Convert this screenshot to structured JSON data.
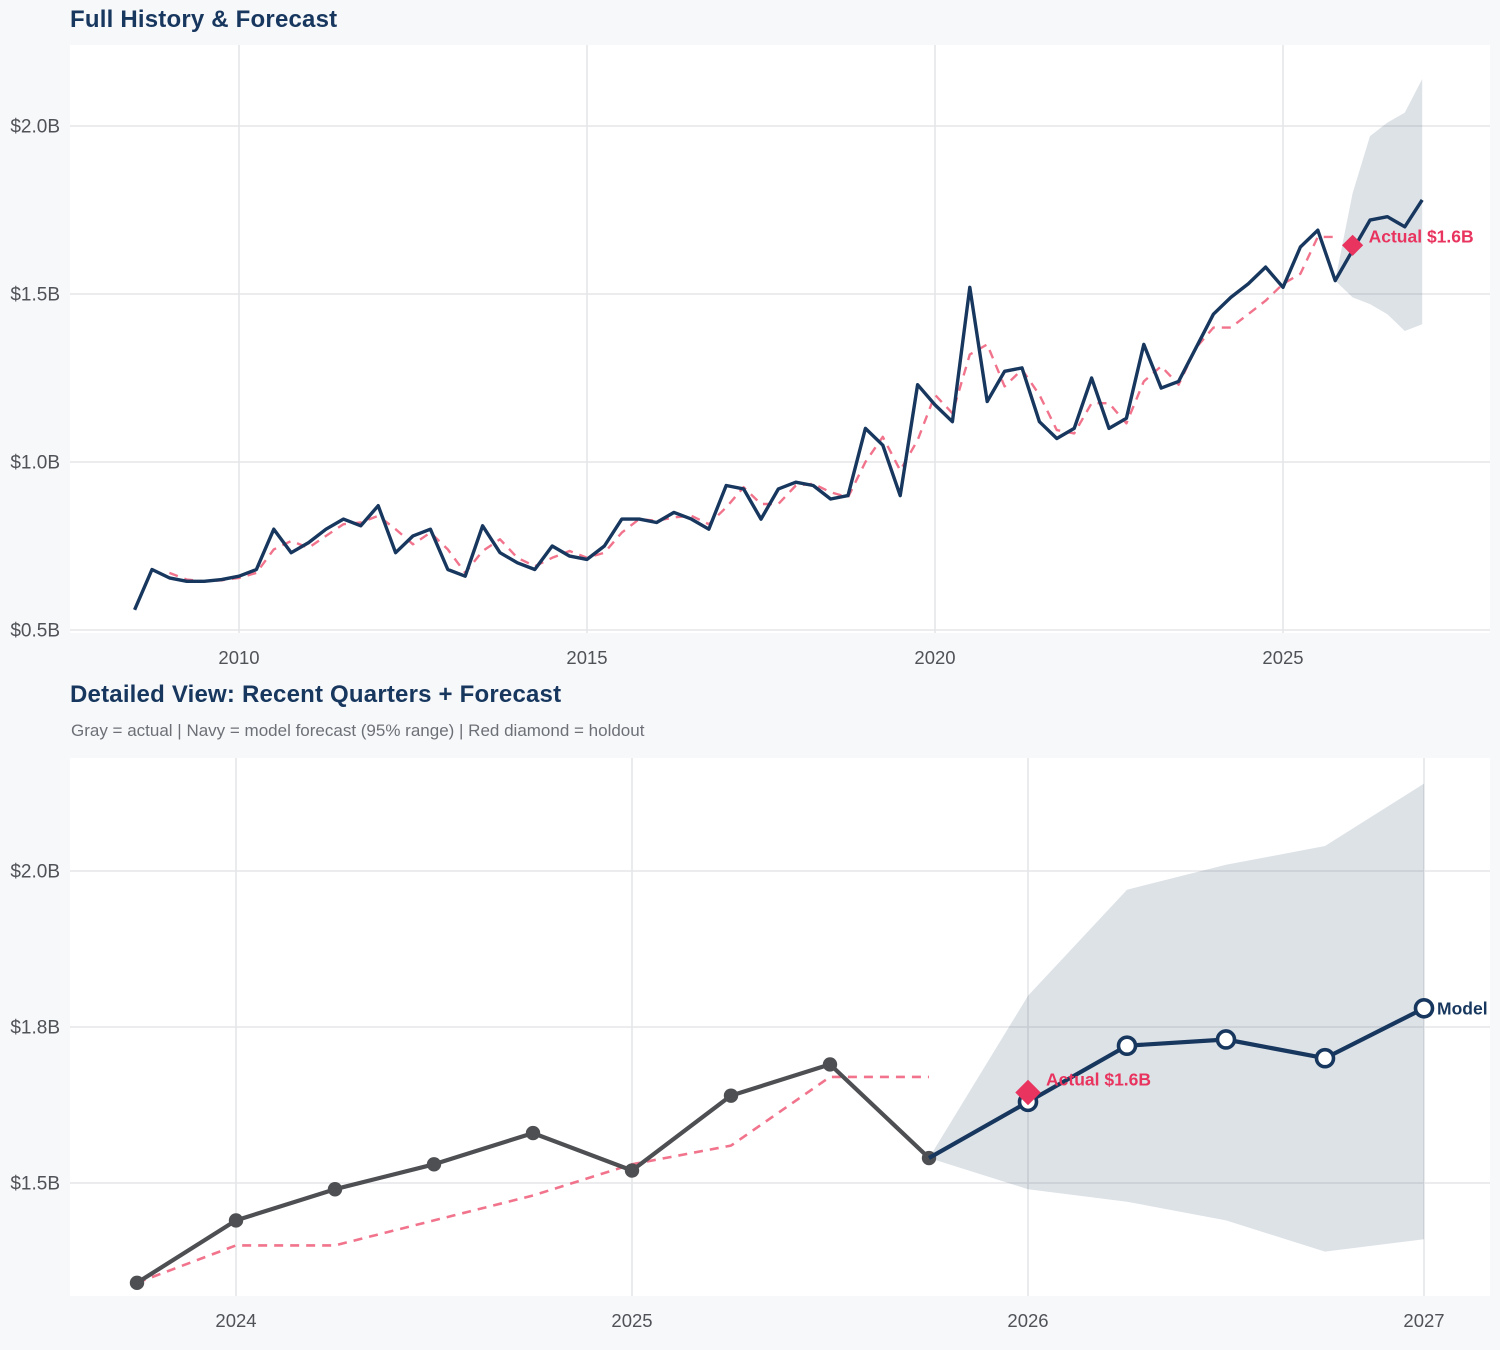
{
  "colors": {
    "navy": "#17375e",
    "pink": "#ef6480",
    "gray": "#4d4f52",
    "crimson": "#e8345e",
    "band": "#1b3a5f",
    "grid": "#e5e6e8",
    "plot_bg": "#ffffff",
    "page_bg": "#f7f8fa",
    "tick_text": "#4f5257",
    "title_text": "#17375e",
    "subtitle_text": "#6d7177"
  },
  "chart_data": [
    {
      "type": "line",
      "title": "Full History & Forecast",
      "x_unit": "year_quarterly",
      "xticks": [
        {
          "value": 2010,
          "label": "2010"
        },
        {
          "value": 2015,
          "label": "2015"
        },
        {
          "value": 2020,
          "label": "2020"
        },
        {
          "value": 2025,
          "label": "2025"
        }
      ],
      "yticks": [
        {
          "value": 0.5,
          "label": "$0.5B"
        },
        {
          "value": 1.0,
          "label": "$1.0B"
        },
        {
          "value": 1.5,
          "label": "$1.5B"
        },
        {
          "value": 2.0,
          "label": "$2.0B"
        }
      ],
      "xlim": [
        2007.55,
        2027.95
      ],
      "ylim": [
        0.49,
        2.25
      ],
      "grid": true,
      "series": {
        "actual": {
          "name": "actual",
          "x_start": 2008.5,
          "x_step": 0.25,
          "values": [
            0.56,
            0.68,
            0.655,
            0.645,
            0.645,
            0.65,
            0.66,
            0.68,
            0.8,
            0.73,
            0.76,
            0.8,
            0.83,
            0.81,
            0.87,
            0.73,
            0.78,
            0.8,
            0.68,
            0.66,
            0.81,
            0.73,
            0.7,
            0.68,
            0.75,
            0.72,
            0.71,
            0.75,
            0.83,
            0.83,
            0.82,
            0.85,
            0.83,
            0.8,
            0.93,
            0.92,
            0.83,
            0.92,
            0.94,
            0.93,
            0.89,
            0.9,
            1.1,
            1.05,
            0.9,
            1.23,
            1.17,
            1.12,
            1.52,
            1.18,
            1.27,
            1.28,
            1.12,
            1.07,
            1.1,
            1.25,
            1.1,
            1.13,
            1.35,
            1.22,
            1.24,
            1.34,
            1.44,
            1.49,
            1.53,
            1.58,
            1.52,
            1.64,
            1.69,
            1.54
          ]
        },
        "fitted": {
          "name": "model fit (in-sample)",
          "x_start": 2009.0,
          "x_step": 0.25,
          "values": [
            0.67,
            0.65,
            0.645,
            0.648,
            0.655,
            0.67,
            0.74,
            0.765,
            0.745,
            0.78,
            0.815,
            0.82,
            0.84,
            0.8,
            0.755,
            0.79,
            0.74,
            0.67,
            0.735,
            0.77,
            0.715,
            0.69,
            0.715,
            0.735,
            0.715,
            0.73,
            0.79,
            0.83,
            0.825,
            0.835,
            0.84,
            0.815,
            0.865,
            0.925,
            0.875,
            0.875,
            0.93,
            0.935,
            0.91,
            0.895,
            1.0,
            1.075,
            0.975,
            1.065,
            1.2,
            1.145,
            1.32,
            1.35,
            1.225,
            1.275,
            1.2,
            1.095,
            1.085,
            1.175,
            1.175,
            1.115,
            1.24,
            1.285,
            1.23,
            1.34,
            1.4,
            1.4,
            1.44,
            1.48,
            1.53,
            1.56,
            1.67,
            1.67
          ]
        },
        "forecast": {
          "name": "model forecast",
          "x_start": 2026.0,
          "x_step": 0.25,
          "values": [
            1.63,
            1.72,
            1.73,
            1.7,
            1.78
          ]
        }
      },
      "band": {
        "name": "95% range",
        "x": [
          2025.75,
          2026.0,
          2026.25,
          2026.5,
          2026.75,
          2027.0
        ],
        "upper": [
          1.54,
          1.8,
          1.97,
          2.01,
          2.04,
          2.14
        ],
        "lower": [
          1.54,
          1.49,
          1.47,
          1.44,
          1.39,
          1.41
        ]
      },
      "holdout": {
        "x": 2026.0,
        "value": 1.645,
        "label": "Actual $1.6B"
      }
    },
    {
      "type": "line",
      "title": "Detailed View: Recent Quarters + Forecast",
      "subtitle": "Gray = actual  |  Navy = model forecast (95% range)  |  Red diamond = holdout",
      "x_unit": "year_quarterly",
      "xticks": [
        {
          "value": 2024,
          "label": "2024"
        },
        {
          "value": 2025,
          "label": "2025"
        },
        {
          "value": 2026,
          "label": "2026"
        },
        {
          "value": 2027,
          "label": "2027"
        }
      ],
      "yticks": [
        {
          "value": 1.5,
          "label": "$1.5B"
        },
        {
          "value": 1.75,
          "label": "$1.8B"
        },
        {
          "value": 2.0,
          "label": "$2.0B"
        }
      ],
      "xlim": [
        2023.58,
        2027.17
      ],
      "ylim": [
        1.32,
        2.18
      ],
      "grid": true,
      "series": {
        "actual": {
          "name": "actual",
          "x_start": 2023.75,
          "x_step": 0.25,
          "values": [
            1.34,
            1.44,
            1.49,
            1.53,
            1.58,
            1.52,
            1.64,
            1.69,
            1.54
          ]
        },
        "fitted": {
          "name": "model fit (in-sample)",
          "x_start": 2023.75,
          "x_step": 0.25,
          "values": [
            1.34,
            1.4,
            1.4,
            1.44,
            1.48,
            1.53,
            1.56,
            1.67,
            1.67
          ]
        },
        "forecast": {
          "name": "model forecast",
          "x_start": 2026.0,
          "x_step": 0.25,
          "values": [
            1.63,
            1.72,
            1.73,
            1.7,
            1.78
          ]
        }
      },
      "band": {
        "name": "95% range",
        "x": [
          2025.75,
          2026.0,
          2026.25,
          2026.5,
          2026.75,
          2027.0
        ],
        "upper": [
          1.54,
          1.8,
          1.97,
          2.01,
          2.04,
          2.14
        ],
        "lower": [
          1.54,
          1.49,
          1.47,
          1.44,
          1.39,
          1.41
        ]
      },
      "holdout": {
        "x": 2026.0,
        "value": 1.645,
        "label": "Actual $1.6B"
      },
      "model_label": "Model"
    }
  ]
}
